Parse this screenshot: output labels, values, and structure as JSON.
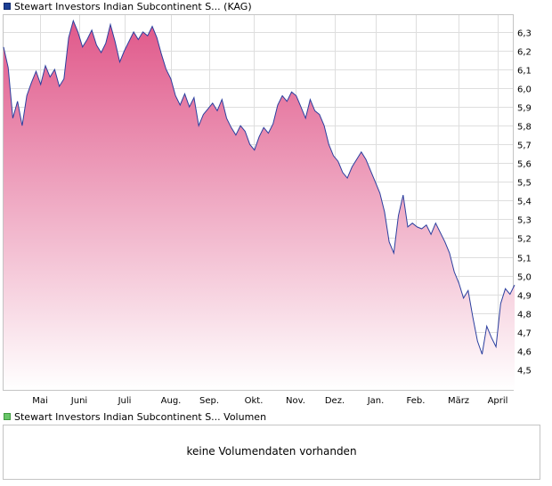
{
  "price_legend": {
    "label": "Stewart Investors Indian Subcontinent S... (KAG)",
    "swatch_color": "#1c3f94"
  },
  "volume_legend": {
    "label": "Stewart Investors Indian Subcontinent S... Volumen",
    "swatch_color": "#69c669"
  },
  "volume_panel": {
    "message": "keine Volumendaten vorhanden"
  },
  "chart_data": {
    "type": "area",
    "title": "",
    "xlabel": "",
    "ylabel": "",
    "grid": true,
    "y_axis_position": "right",
    "ylim": [
      4.39,
      6.39
    ],
    "y_ticks": [
      "4,5",
      "4,6",
      "4,7",
      "4,8",
      "4,9",
      "5,0",
      "5,1",
      "5,2",
      "5,3",
      "5,4",
      "5,5",
      "5,6",
      "5,7",
      "5,8",
      "5,9",
      "6,0",
      "6,1",
      "6,2",
      "6,3"
    ],
    "x_ticks": [
      "Mai",
      "Juni",
      "Juli",
      "Aug.",
      "Sep.",
      "Okt.",
      "Nov.",
      "Dez.",
      "Jan.",
      "Feb.",
      "März",
      "April"
    ],
    "colors": {
      "line": "#2b3f9f",
      "fill_top": "#e0588a",
      "fill_bottom": "#ffffff",
      "grid": "#dedede"
    },
    "series": [
      {
        "values": [
          6.22,
          6.11,
          5.84,
          5.93,
          5.8,
          5.96,
          6.03,
          6.09,
          6.02,
          6.12,
          6.06,
          6.1,
          6.01,
          6.05,
          6.27,
          6.36,
          6.3,
          6.22,
          6.26,
          6.31,
          6.23,
          6.19,
          6.24,
          6.34,
          6.25,
          6.14,
          6.2,
          6.25,
          6.3,
          6.26,
          6.3,
          6.28,
          6.33,
          6.27,
          6.18,
          6.1,
          6.05,
          5.96,
          5.91,
          5.97,
          5.9,
          5.95,
          5.8,
          5.86,
          5.89,
          5.92,
          5.88,
          5.94,
          5.84,
          5.79,
          5.75,
          5.8,
          5.77,
          5.7,
          5.67,
          5.74,
          5.79,
          5.76,
          5.81,
          5.91,
          5.96,
          5.93,
          5.98,
          5.96,
          5.9,
          5.84,
          5.94,
          5.88,
          5.86,
          5.8,
          5.7,
          5.64,
          5.61,
          5.55,
          5.52,
          5.58,
          5.62,
          5.66,
          5.62,
          5.56,
          5.5,
          5.44,
          5.34,
          5.18,
          5.12,
          5.32,
          5.43,
          5.26,
          5.28,
          5.26,
          5.25,
          5.27,
          5.22,
          5.28,
          5.23,
          5.18,
          5.12,
          5.02,
          4.96,
          4.88,
          4.92,
          4.78,
          4.65,
          4.58,
          4.73,
          4.67,
          4.62,
          4.85,
          4.93,
          4.9,
          4.95
        ]
      }
    ]
  }
}
